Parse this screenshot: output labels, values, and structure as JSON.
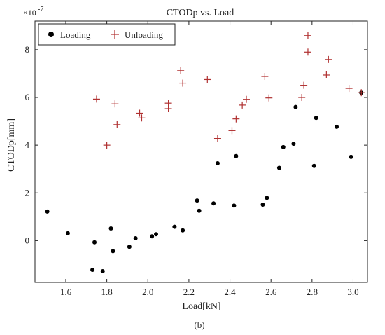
{
  "chart_data": {
    "type": "scatter",
    "title": "CTODp vs. Load",
    "xlabel": "Load[kN]",
    "ylabel": "CTODp[mm]",
    "y_multiplier_label": "×10",
    "y_multiplier_exponent": "-7",
    "caption": "(b)",
    "xlim": [
      1.45,
      3.07
    ],
    "ylim": [
      -1.75,
      9.2
    ],
    "x_ticks": [
      1.6,
      1.8,
      2.0,
      2.2,
      2.4,
      2.6,
      2.8,
      3.0
    ],
    "x_tick_labels": [
      "1.6",
      "1.8",
      "2.0",
      "2.2",
      "2.4",
      "2.6",
      "2.8",
      "3.0"
    ],
    "y_ticks": [
      0,
      2,
      4,
      6,
      8
    ],
    "y_tick_labels": [
      "0",
      "2",
      "4",
      "6",
      "8"
    ],
    "legend_position": "top-left",
    "series": [
      {
        "name": "Loading",
        "marker": "dot",
        "color": "#000000",
        "points": [
          [
            1.51,
            1.22
          ],
          [
            1.61,
            0.31
          ],
          [
            1.73,
            -1.22
          ],
          [
            1.74,
            -0.07
          ],
          [
            1.78,
            -1.28
          ],
          [
            1.82,
            0.51
          ],
          [
            1.83,
            -0.44
          ],
          [
            1.91,
            -0.26
          ],
          [
            1.94,
            0.1
          ],
          [
            2.02,
            0.18
          ],
          [
            2.04,
            0.27
          ],
          [
            2.13,
            0.58
          ],
          [
            2.17,
            0.43
          ],
          [
            2.24,
            1.68
          ],
          [
            2.25,
            1.25
          ],
          [
            2.32,
            1.56
          ],
          [
            2.34,
            3.24
          ],
          [
            2.42,
            1.47
          ],
          [
            2.43,
            3.54
          ],
          [
            2.56,
            1.51
          ],
          [
            2.58,
            1.79
          ],
          [
            2.64,
            3.05
          ],
          [
            2.66,
            3.92
          ],
          [
            2.71,
            4.06
          ],
          [
            2.72,
            5.6
          ],
          [
            2.81,
            3.13
          ],
          [
            2.82,
            5.14
          ],
          [
            2.92,
            4.77
          ],
          [
            2.99,
            3.51
          ],
          [
            3.04,
            6.2
          ]
        ]
      },
      {
        "name": "Unloading",
        "marker": "plus",
        "color": "#b03030",
        "points": [
          [
            1.75,
            5.93
          ],
          [
            1.8,
            4.0
          ],
          [
            1.84,
            5.73
          ],
          [
            1.85,
            4.86
          ],
          [
            1.96,
            5.34
          ],
          [
            1.97,
            5.14
          ],
          [
            2.1,
            5.76
          ],
          [
            2.1,
            5.53
          ],
          [
            2.16,
            7.12
          ],
          [
            2.17,
            6.6
          ],
          [
            2.29,
            6.75
          ],
          [
            2.34,
            4.28
          ],
          [
            2.41,
            4.61
          ],
          [
            2.43,
            5.1
          ],
          [
            2.46,
            5.68
          ],
          [
            2.48,
            5.92
          ],
          [
            2.57,
            6.88
          ],
          [
            2.59,
            5.98
          ],
          [
            2.75,
            6.0
          ],
          [
            2.76,
            6.51
          ],
          [
            2.78,
            7.9
          ],
          [
            2.78,
            8.59
          ],
          [
            2.87,
            6.94
          ],
          [
            2.88,
            7.59
          ],
          [
            2.98,
            6.38
          ],
          [
            3.04,
            6.2
          ]
        ]
      }
    ]
  }
}
